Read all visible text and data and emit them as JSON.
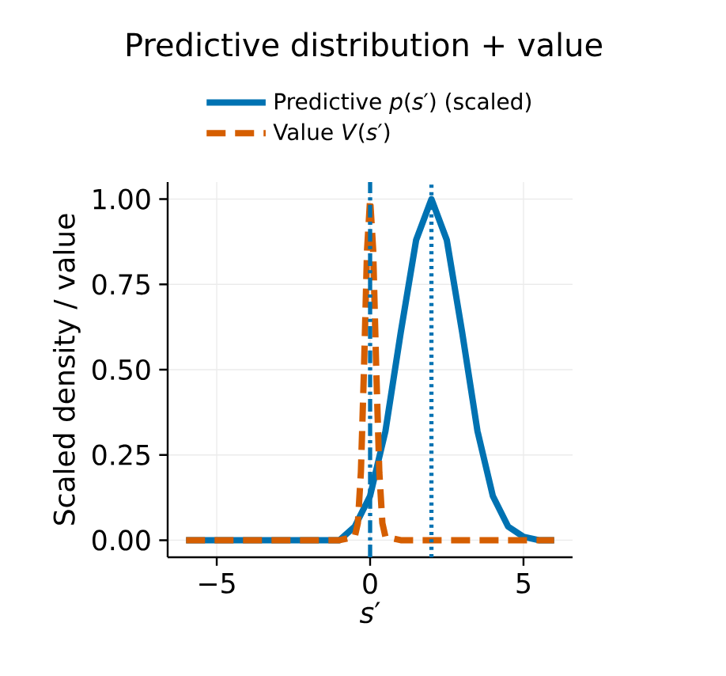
{
  "chart_data": {
    "type": "line",
    "title": "Predictive distribution + value",
    "xlabel": "*s*′",
    "ylabel": "Scaled density / value",
    "xlim": [
      -6.6,
      6.6
    ],
    "ylim": [
      -0.05,
      1.05
    ],
    "xticks": [
      {
        "value": -5,
        "label": "−5"
      },
      0,
      5
    ],
    "yticks": [
      {
        "value": 0,
        "label": "0.00"
      },
      {
        "value": 0.25,
        "label": "0.25"
      },
      {
        "value": 0.5,
        "label": "0.50"
      },
      {
        "value": 0.75,
        "label": "0.75"
      },
      {
        "value": 1,
        "label": "1.00"
      }
    ],
    "grid": true,
    "legend": "top",
    "series": [
      {
        "name": "Predictive *p*(*s*′) (scaled)",
        "color": "#0072b2",
        "line_style": "solid",
        "x": [
          -6,
          -5,
          -4,
          -3,
          -2,
          -1,
          -0.5,
          0,
          0.5,
          1,
          1.5,
          2,
          2.5,
          3,
          3.5,
          4,
          4.5,
          5,
          5.5,
          6
        ],
        "values": [
          0,
          0,
          0,
          0,
          0,
          0,
          0.04,
          0.13,
          0.32,
          0.61,
          0.88,
          1.0,
          0.88,
          0.61,
          0.32,
          0.13,
          0.04,
          0.01,
          0,
          0
        ]
      },
      {
        "name": "Value *V*(*s*′)",
        "color": "#d55e00",
        "line_style": "dashed",
        "x": [
          -6,
          -1,
          -0.5,
          -0.4,
          -0.3,
          -0.2,
          -0.1,
          0,
          0.1,
          0.2,
          0.3,
          0.4,
          0.5,
          1,
          6
        ],
        "values": [
          0,
          0,
          0.01,
          0.05,
          0.2,
          0.5,
          0.85,
          1.0,
          0.85,
          0.5,
          0.2,
          0.05,
          0.01,
          0,
          0
        ]
      }
    ],
    "ref_lines": [
      {
        "axis": "x",
        "value": 0,
        "color": "#0072b2",
        "line_style": "dashdot"
      },
      {
        "axis": "x",
        "value": 2,
        "color": "#0072b2",
        "line_style": "dotted"
      }
    ]
  }
}
